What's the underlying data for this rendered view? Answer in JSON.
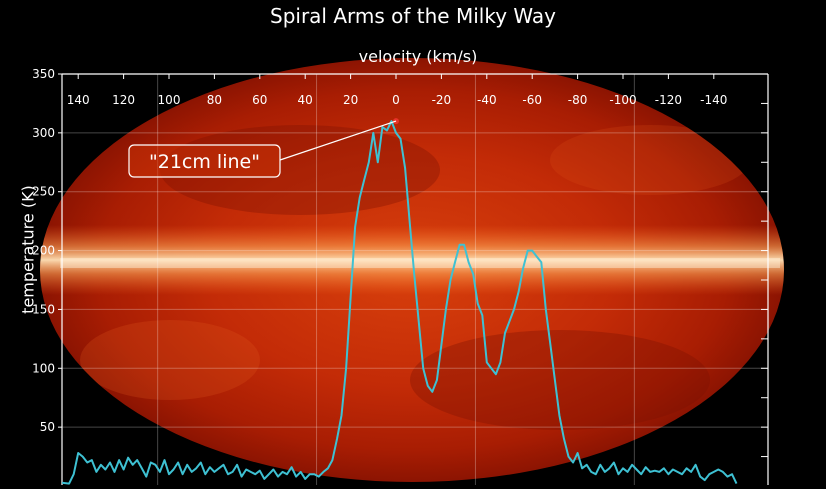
{
  "chart_data": {
    "type": "line",
    "title": "Spiral Arms of the Milky Way",
    "xlabel": "velocity (km/s)",
    "ylabel": "temperature (K)",
    "xlim": [
      150,
      -160
    ],
    "ylim": [
      0,
      350
    ],
    "x_ticks": [
      140,
      120,
      100,
      80,
      60,
      40,
      20,
      0,
      -20,
      -40,
      -60,
      -80,
      -100,
      -120,
      -140
    ],
    "y_ticks": [
      50,
      100,
      150,
      200,
      250,
      300,
      350
    ],
    "x_axis_position": "top",
    "grid": true,
    "background": "all-sky Milky Way map (red/orange, bright horizontal galactic plane)",
    "series": [
      {
        "color": "#3ec1d3",
        "x": [
          148,
          144,
          142,
          140,
          138,
          136,
          134,
          132,
          130,
          128,
          126,
          124,
          122,
          120,
          118,
          116,
          114,
          112,
          110,
          108,
          106,
          104,
          102,
          100,
          98,
          96,
          94,
          92,
          90,
          88,
          86,
          84,
          82,
          80,
          78,
          76,
          74,
          72,
          70,
          68,
          66,
          64,
          62,
          60,
          58,
          56,
          54,
          52,
          50,
          48,
          46,
          44,
          42,
          40,
          38,
          36,
          34,
          32,
          30,
          28,
          26,
          24,
          22,
          20,
          18,
          16,
          14,
          12,
          10,
          8,
          6,
          4,
          2,
          0,
          -2,
          -4,
          -6,
          -8,
          -10,
          -12,
          -14,
          -16,
          -18,
          -20,
          -22,
          -24,
          -26,
          -28,
          -30,
          -32,
          -34,
          -36,
          -38,
          -40,
          -42,
          -44,
          -46,
          -48,
          -50,
          -52,
          -54,
          -56,
          -58,
          -60,
          -62,
          -64,
          -66,
          -68,
          -70,
          -72,
          -74,
          -76,
          -78,
          -80,
          -82,
          -84,
          -86,
          -88,
          -90,
          -92,
          -94,
          -96,
          -98,
          -100,
          -102,
          -104,
          -106,
          -108,
          -110,
          -112,
          -114,
          -116,
          -118,
          -120,
          -122,
          -124,
          -126,
          -128,
          -130,
          -132,
          -134,
          -136,
          -138,
          -140,
          -142,
          -144,
          -146,
          -148,
          -150
        ],
        "y": [
          3,
          2,
          10,
          28,
          25,
          20,
          22,
          12,
          18,
          14,
          20,
          12,
          22,
          14,
          24,
          18,
          22,
          15,
          8,
          20,
          18,
          12,
          22,
          10,
          14,
          20,
          10,
          18,
          12,
          15,
          20,
          10,
          16,
          12,
          15,
          18,
          10,
          12,
          18,
          8,
          14,
          12,
          10,
          13,
          6,
          10,
          14,
          8,
          12,
          10,
          16,
          8,
          12,
          6,
          10,
          10,
          8,
          12,
          15,
          22,
          40,
          60,
          100,
          160,
          220,
          245,
          260,
          275,
          300,
          275,
          305,
          302,
          310,
          300,
          295,
          270,
          225,
          180,
          140,
          100,
          85,
          80,
          90,
          120,
          150,
          175,
          190,
          205,
          205,
          190,
          180,
          155,
          145,
          105,
          100,
          95,
          105,
          130,
          140,
          150,
          165,
          185,
          200,
          200,
          195,
          190,
          150,
          120,
          90,
          60,
          40,
          25,
          20,
          28,
          15,
          18,
          12,
          10,
          18,
          12,
          15,
          20,
          10,
          15,
          12,
          18,
          14,
          10,
          16,
          12,
          13,
          12,
          15,
          10,
          14,
          12,
          10,
          15,
          12,
          18,
          8,
          5,
          10,
          12,
          14,
          12,
          8,
          10,
          2
        ]
      }
    ],
    "annotations": [
      {
        "text": "\"21cm line\"",
        "x": 0,
        "y": 310
      }
    ]
  }
}
